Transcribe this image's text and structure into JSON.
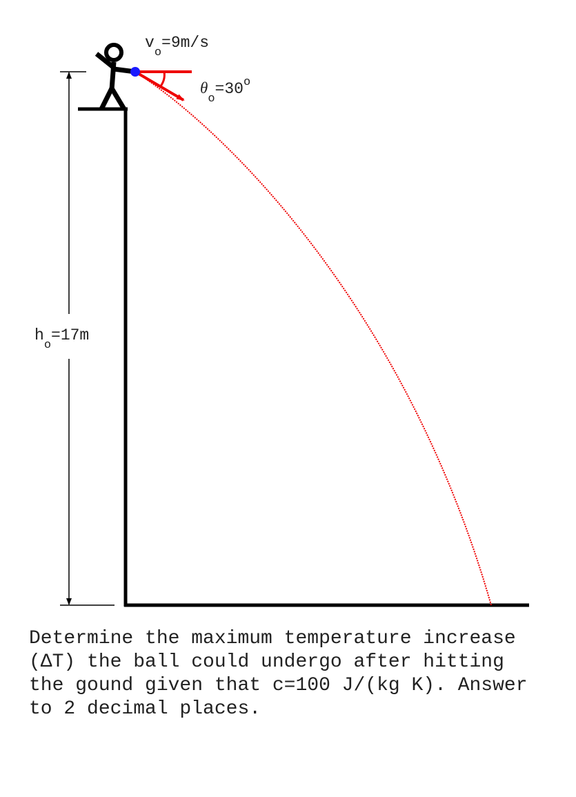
{
  "labels": {
    "velocity": {
      "symbol": "v",
      "subscript": "o",
      "value": "=9m/s"
    },
    "angle": {
      "symbol": "θ",
      "subscript": "o",
      "value": "=30",
      "superscript": "o"
    },
    "height": {
      "symbol": "h",
      "subscript": "o",
      "value": "=17m"
    }
  },
  "question": {
    "lines": [
      "Determine the maximum temperature increase",
      "(ΔT) the ball could undergo after hitting",
      "the gound given that c=100 J/(kg K). Answer",
      "to 2 decimal places."
    ]
  }
}
